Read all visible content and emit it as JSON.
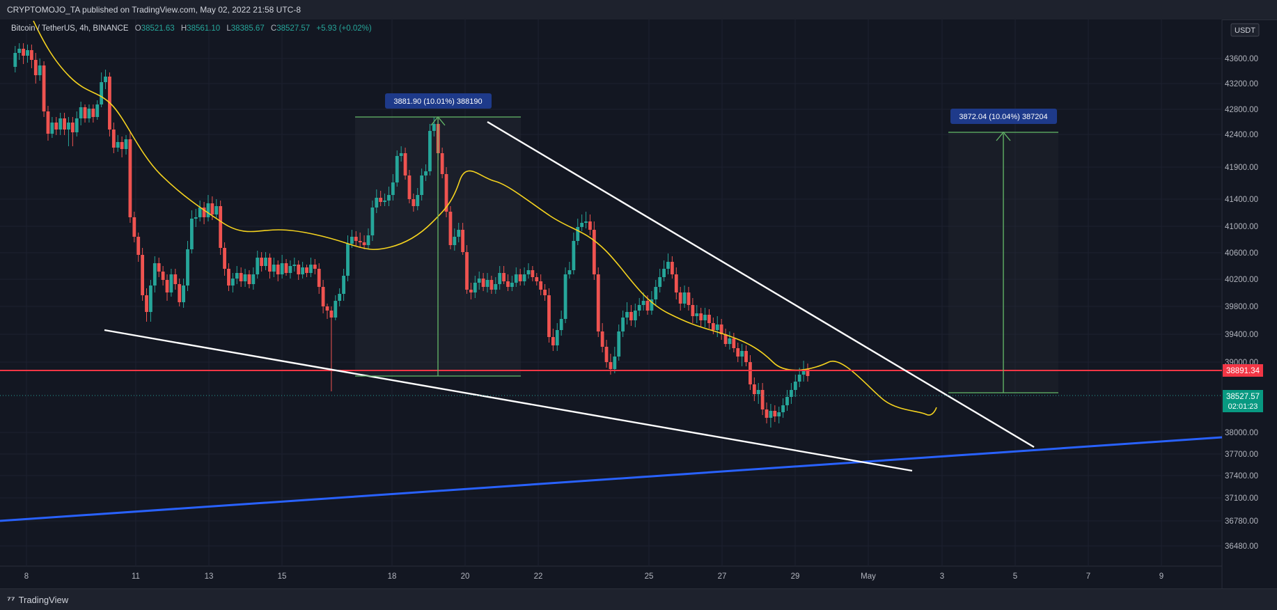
{
  "header": {
    "published": "CRYPTOMOJO_TA published on TradingView.com, May 02, 2022 21:58 UTC-8"
  },
  "legend": {
    "symbol": "Bitcoin / TetherUS, 4h, BINANCE",
    "o_label": "O",
    "o": "38521.63",
    "h_label": "H",
    "h": "38561.10",
    "l_label": "L",
    "l": "38385.67",
    "c_label": "C",
    "c": "38527.57",
    "change": "+5.93 (+0.02%)"
  },
  "footer": {
    "logo_text": "TradingView"
  },
  "chart_data": {
    "type": "candlestick",
    "currency_label": "USDT",
    "y_ticks": [
      "43600.00",
      "43200.00",
      "42800.00",
      "42400.00",
      "41900.00",
      "41400.00",
      "41000.00",
      "40600.00",
      "40200.00",
      "39800.00",
      "39400.00",
      "39000.00",
      "38000.00",
      "37700.00",
      "37400.00",
      "37100.00",
      "36780.00",
      "36480.00"
    ],
    "x_ticks": [
      "8",
      "11",
      "13",
      "15",
      "18",
      "20",
      "22",
      "25",
      "27",
      "29",
      "May",
      "3",
      "5",
      "7",
      "9"
    ],
    "price_labels": {
      "horizontal_line": "38891.34",
      "last_price": "38527.57",
      "countdown": "02:01:23"
    },
    "measurements": [
      {
        "label": "3881.90 (10.01%) 388190"
      },
      {
        "label": "3872.04 (10.04%) 387204"
      }
    ],
    "colors": {
      "up": "#26a69a",
      "down": "#ef5350",
      "ma": "#f5d31f",
      "support": "#2962ff",
      "level": "#f23645",
      "measure": "#66bb6a",
      "trendline": "#ffffff"
    }
  }
}
